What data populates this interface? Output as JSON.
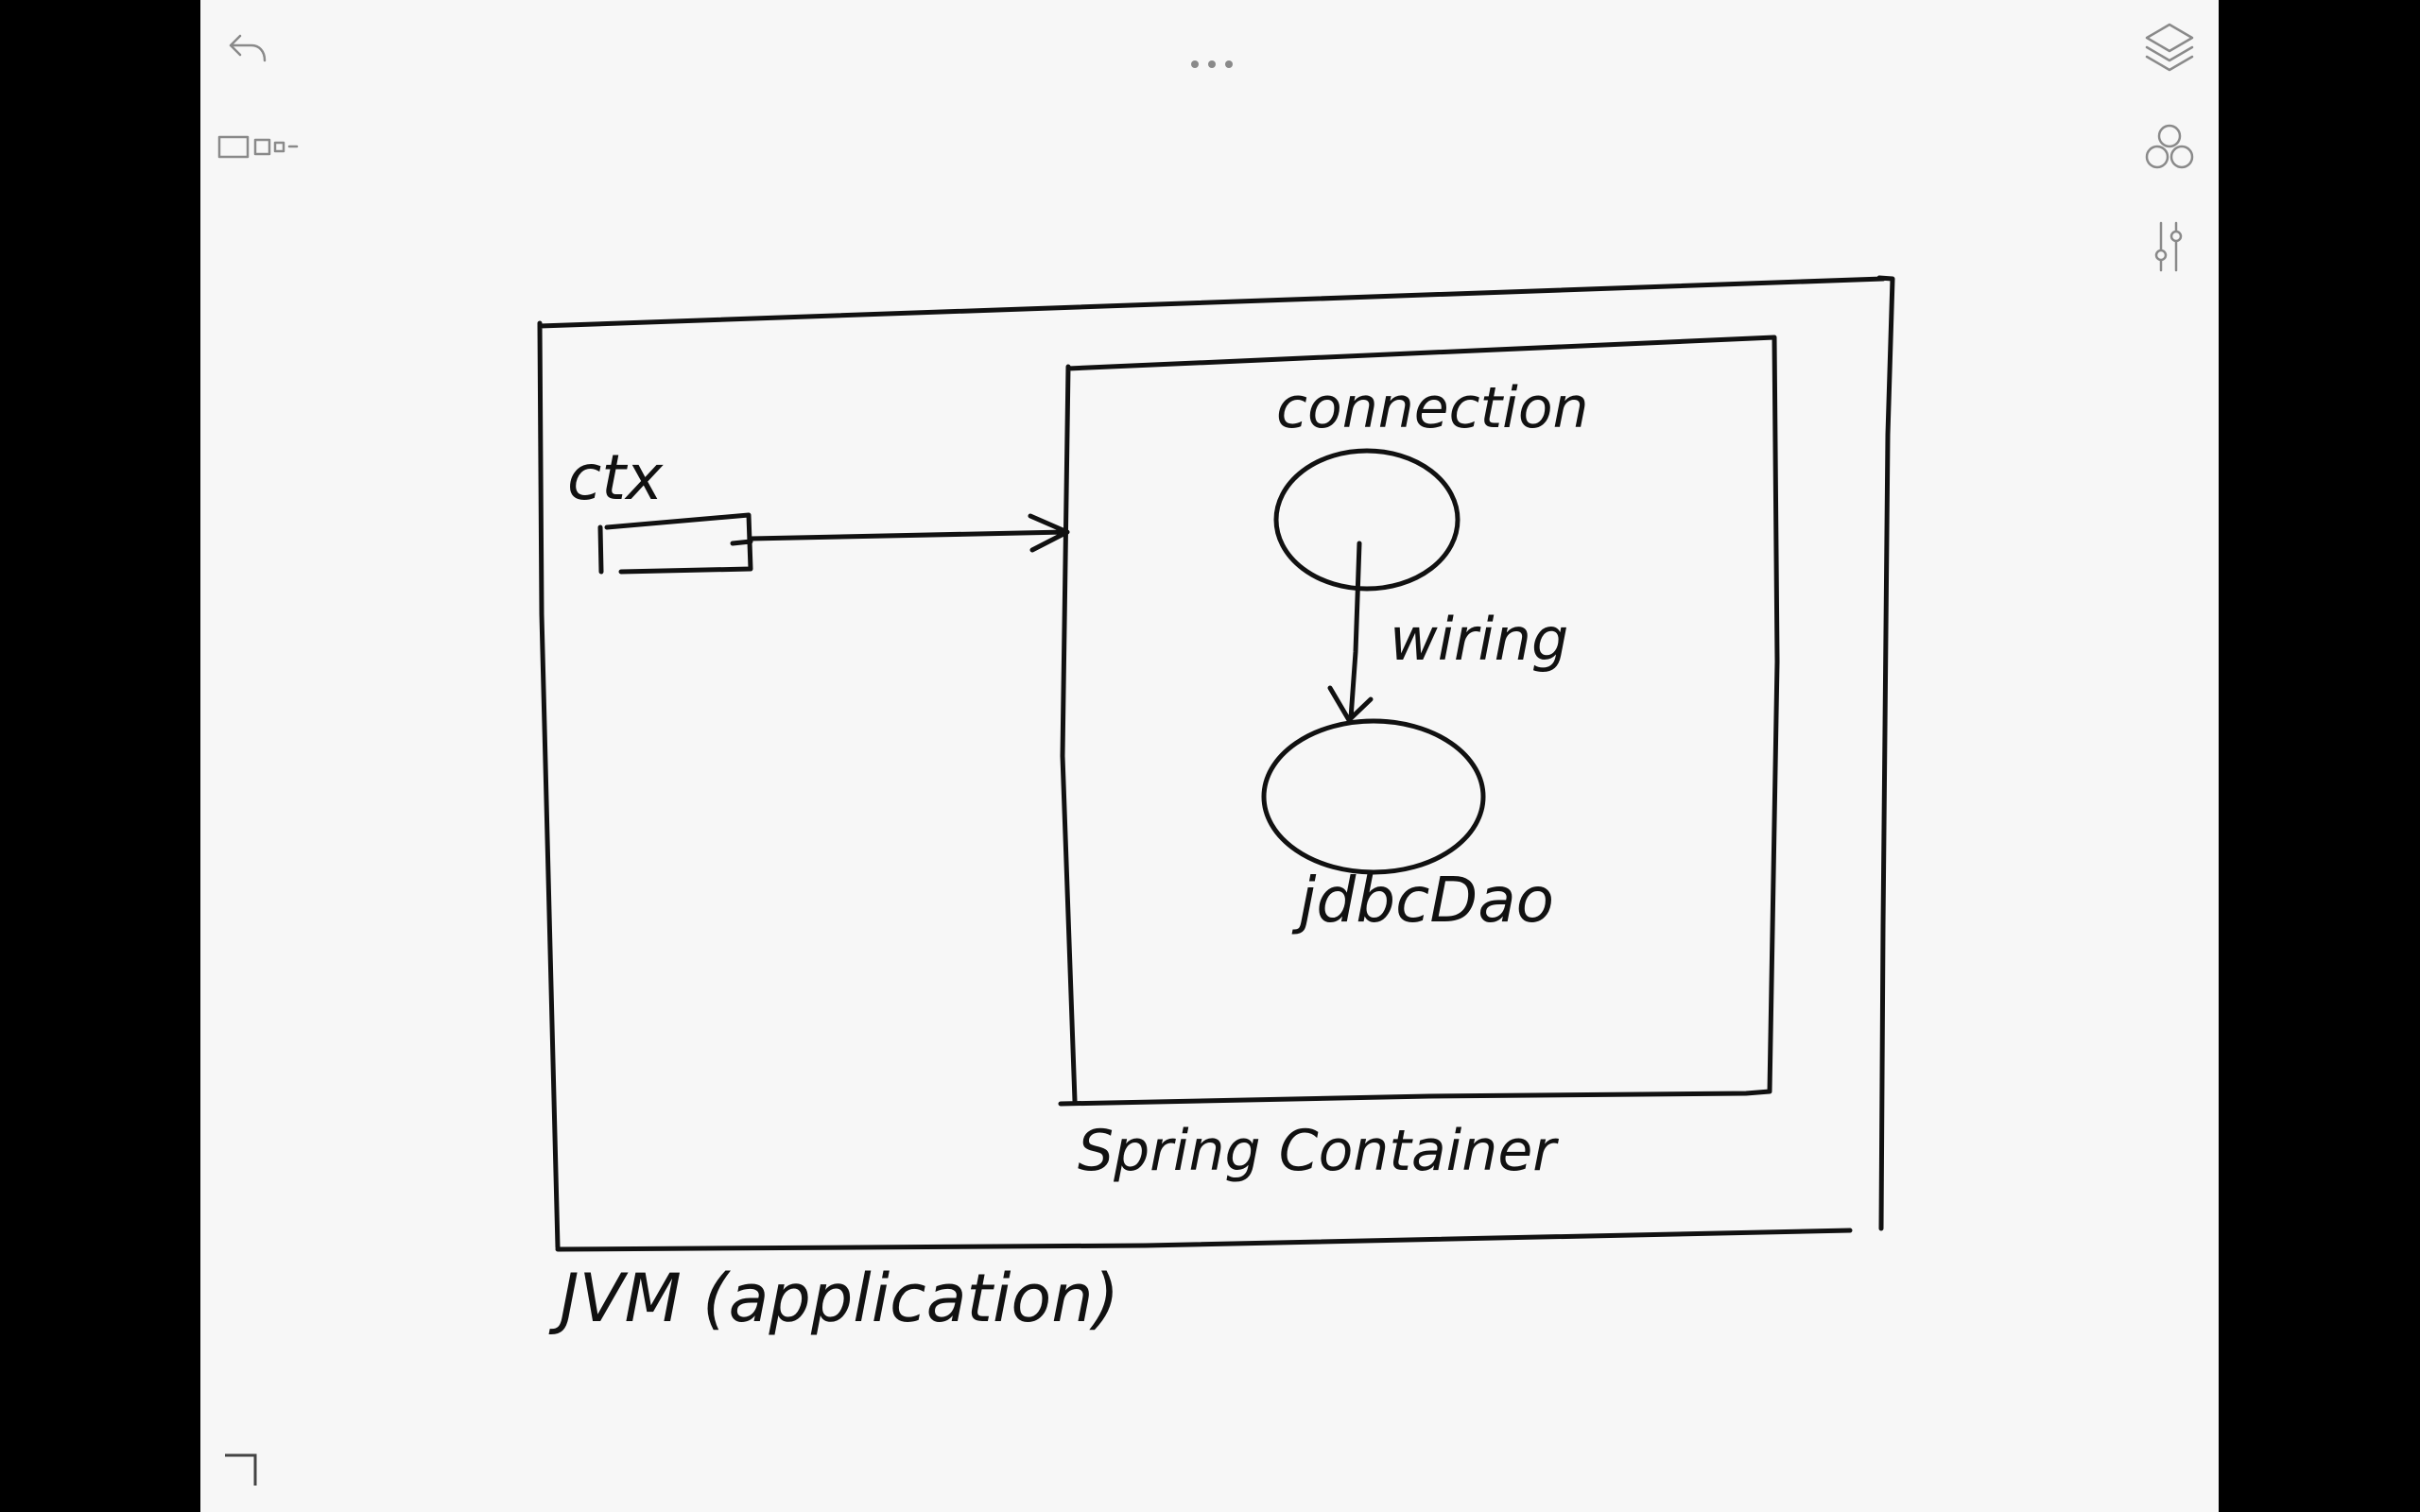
{
  "toolbar": {
    "undo_icon": "undo-arrow-icon",
    "thumbnails_icon": "page-thumbnails-icon",
    "more_icon": "more-dots-icon",
    "layers_icon": "layers-icon",
    "shapes_icon": "shapes-circles-icon",
    "adjust_icon": "adjust-sliders-icon",
    "corner_icon": "corner-resize-icon"
  },
  "sketch": {
    "outer_box_label": "JVM (application)",
    "inner_box_label": "Spring Container",
    "reference_label": "ctx",
    "bean_top_label": "connection",
    "bean_bottom_label": "jdbcDao",
    "arrow_label": "wiring"
  },
  "colors": {
    "canvas": "#f7f7f7",
    "ink": "#111111",
    "chrome": "#8a8a8a",
    "letterbox": "#000000"
  }
}
